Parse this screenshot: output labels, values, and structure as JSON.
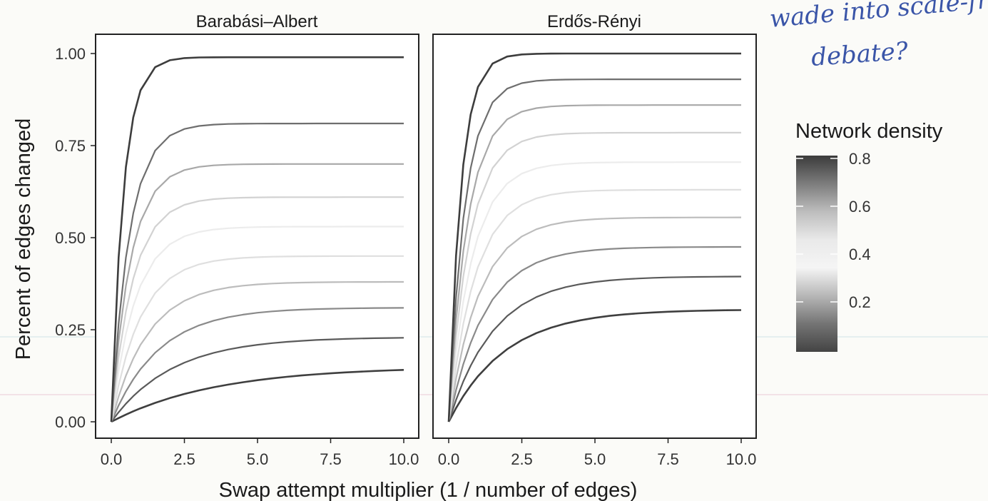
{
  "chart_data": {
    "type": "line",
    "xlabel": "Swap attempt multiplier (1 / number of edges)",
    "ylabel": "Percent of edges changed",
    "xlim": [
      0,
      10
    ],
    "ylim": [
      0,
      1
    ],
    "x_ticks": [
      "0.0",
      "2.5",
      "5.0",
      "7.5",
      "10.0"
    ],
    "y_ticks": [
      "0.00",
      "0.25",
      "0.50",
      "0.75",
      "1.00"
    ],
    "grid": false,
    "legend": {
      "title": "Network density",
      "position": "right",
      "ticks": [
        "0.8",
        "0.6",
        "0.4",
        "0.2"
      ],
      "colors": [
        "#3b3b3b",
        "#7c7c7c",
        "#bdbdbd",
        "#e9e9e9",
        "#f5f5f5",
        "#b7b7b7",
        "#747474",
        "#444444"
      ]
    },
    "panels": [
      {
        "title": "Barabási–Albert",
        "series": [
          {
            "density": 0.1,
            "plateau": 0.15,
            "rate": 0.28,
            "color": "#3f3f3f"
          },
          {
            "density": 0.2,
            "plateau": 0.23,
            "rate": 0.48,
            "color": "#5a5a5a"
          },
          {
            "density": 0.3,
            "plateau": 0.31,
            "rate": 0.62,
            "color": "#8a8a8a"
          },
          {
            "density": 0.4,
            "plateau": 0.38,
            "rate": 0.8,
            "color": "#bcbcbc"
          },
          {
            "density": 0.45,
            "plateau": 0.45,
            "rate": 1.0,
            "color": "#dfdfdf"
          },
          {
            "density": 0.5,
            "plateau": 0.53,
            "rate": 1.2,
            "color": "#ececec"
          },
          {
            "density": 0.55,
            "plateau": 0.61,
            "rate": 1.35,
            "color": "#d2d2d2"
          },
          {
            "density": 0.6,
            "plateau": 0.7,
            "rate": 1.5,
            "color": "#a8a8a8"
          },
          {
            "density": 0.7,
            "plateau": 0.81,
            "rate": 1.6,
            "color": "#6e6e6e"
          },
          {
            "density": 0.8,
            "plateau": 0.99,
            "rate": 2.4,
            "color": "#3d3d3d"
          }
        ]
      },
      {
        "title": "Erdős-Rényi",
        "series": [
          {
            "density": 0.1,
            "plateau": 0.305,
            "rate": 0.52,
            "color": "#3f3f3f"
          },
          {
            "density": 0.2,
            "plateau": 0.395,
            "rate": 0.65,
            "color": "#5a5a5a"
          },
          {
            "density": 0.3,
            "plateau": 0.475,
            "rate": 0.8,
            "color": "#8a8a8a"
          },
          {
            "density": 0.4,
            "plateau": 0.555,
            "rate": 0.95,
            "color": "#bcbcbc"
          },
          {
            "density": 0.45,
            "plateau": 0.63,
            "rate": 1.1,
            "color": "#dfdfdf"
          },
          {
            "density": 0.5,
            "plateau": 0.705,
            "rate": 1.25,
            "color": "#ececec"
          },
          {
            "density": 0.55,
            "plateau": 0.785,
            "rate": 1.4,
            "color": "#d2d2d2"
          },
          {
            "density": 0.6,
            "plateau": 0.86,
            "rate": 1.55,
            "color": "#a8a8a8"
          },
          {
            "density": 0.7,
            "plateau": 0.93,
            "rate": 1.8,
            "color": "#6e6e6e"
          },
          {
            "density": 0.8,
            "plateau": 1.0,
            "rate": 2.4,
            "color": "#3d3d3d"
          }
        ]
      }
    ],
    "x": [
      0,
      0.25,
      0.5,
      0.75,
      1,
      1.5,
      2,
      2.5,
      3,
      3.5,
      4,
      4.5,
      5,
      5.5,
      6,
      6.5,
      7,
      7.5,
      8,
      8.5,
      9,
      9.5,
      10
    ]
  },
  "annotation": {
    "handwriting": [
      "wade into scale-fre",
      "debate?"
    ]
  }
}
